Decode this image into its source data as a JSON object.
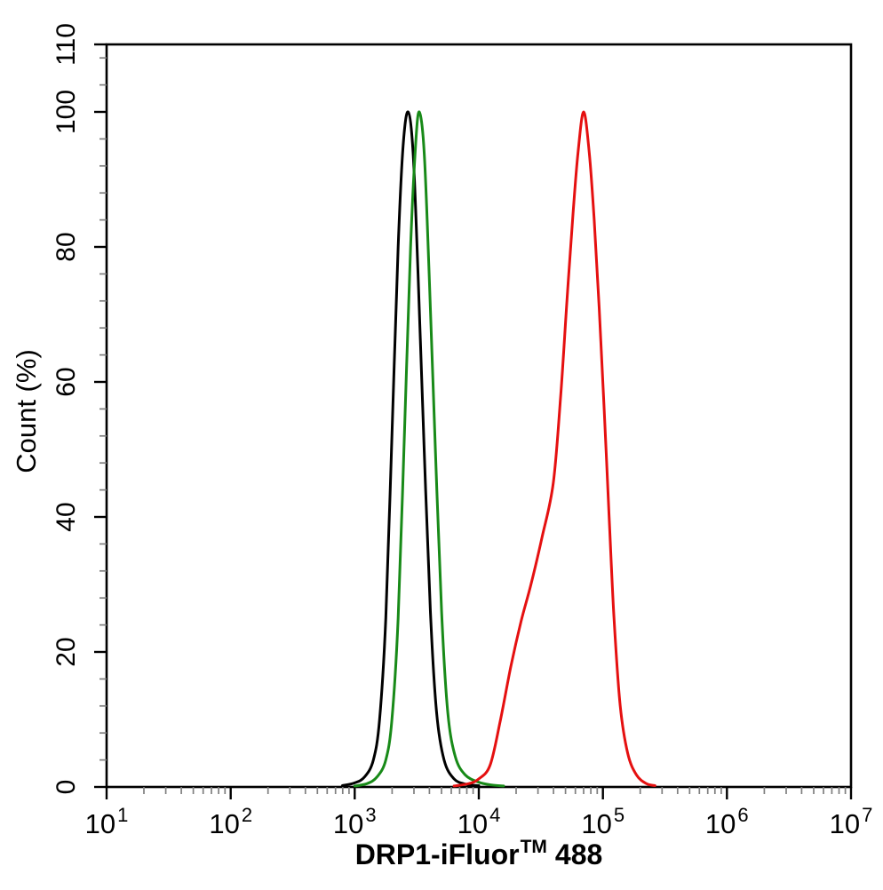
{
  "figure": {
    "ylabel": "Count (%)",
    "xlabel_main": "DRP1-iFluor",
    "xlabel_sup": "TM",
    "xlabel_suffix": "488",
    "background_color": "#ffffff",
    "axis_color": "#000000",
    "minor_tick_color": "#7f7f7f"
  },
  "chart_data": {
    "type": "line",
    "subtype": "flow-cytometry-histogram",
    "title": "",
    "xlabel": "DRP1-iFluor TM 488",
    "ylabel": "Count (%)",
    "x_scale": "log10",
    "x_range_log10": [
      1,
      7
    ],
    "ylim": [
      0,
      110
    ],
    "grid": false,
    "legend": "none",
    "x_ticks": [
      {
        "base": "10",
        "exp": "1",
        "value": 1
      },
      {
        "base": "10",
        "exp": "2",
        "value": 2
      },
      {
        "base": "10",
        "exp": "3",
        "value": 3
      },
      {
        "base": "10",
        "exp": "4",
        "value": 4
      },
      {
        "base": "10",
        "exp": "5",
        "value": 5
      },
      {
        "base": "10",
        "exp": "6",
        "value": 6
      },
      {
        "base": "10",
        "exp": "7",
        "value": 7
      }
    ],
    "y_ticks": [
      {
        "value": 0,
        "label": "0"
      },
      {
        "value": 20,
        "label": "20"
      },
      {
        "value": 40,
        "label": "40"
      },
      {
        "value": 60,
        "label": "60"
      },
      {
        "value": 80,
        "label": "80"
      },
      {
        "value": 100,
        "label": "100"
      },
      {
        "value": 110,
        "label": "110"
      }
    ],
    "y_minor_step": 4,
    "series": [
      {
        "name": "black-curve",
        "color": "#000000",
        "peak_log10x": 3.43,
        "peak_percent": 100,
        "points": [
          [
            2.9,
            0.2
          ],
          [
            3.0,
            0.6
          ],
          [
            3.08,
            1.5
          ],
          [
            3.15,
            4
          ],
          [
            3.2,
            10
          ],
          [
            3.25,
            25
          ],
          [
            3.3,
            52
          ],
          [
            3.35,
            80
          ],
          [
            3.39,
            95
          ],
          [
            3.43,
            100
          ],
          [
            3.47,
            94
          ],
          [
            3.51,
            76
          ],
          [
            3.56,
            50
          ],
          [
            3.61,
            26
          ],
          [
            3.66,
            11
          ],
          [
            3.72,
            4
          ],
          [
            3.8,
            1.2
          ],
          [
            3.9,
            0.4
          ],
          [
            4.0,
            0.2
          ]
        ]
      },
      {
        "name": "green-curve",
        "color": "#188a18",
        "peak_log10x": 3.52,
        "peak_percent": 100,
        "points": [
          [
            3.0,
            0.15
          ],
          [
            3.1,
            0.5
          ],
          [
            3.18,
            1.5
          ],
          [
            3.25,
            4
          ],
          [
            3.3,
            10
          ],
          [
            3.35,
            25
          ],
          [
            3.4,
            52
          ],
          [
            3.45,
            80
          ],
          [
            3.49,
            95
          ],
          [
            3.52,
            100
          ],
          [
            3.56,
            94
          ],
          [
            3.6,
            76
          ],
          [
            3.65,
            50
          ],
          [
            3.7,
            26
          ],
          [
            3.75,
            11
          ],
          [
            3.81,
            4.5
          ],
          [
            3.89,
            1.8
          ],
          [
            4.0,
            0.7
          ],
          [
            4.1,
            0.3
          ],
          [
            4.2,
            0.15
          ]
        ]
      },
      {
        "name": "red-curve",
        "color": "#e51010",
        "peak_log10x": 4.845,
        "peak_percent": 100,
        "points": [
          [
            3.8,
            0.15
          ],
          [
            3.92,
            0.5
          ],
          [
            4.0,
            1.2
          ],
          [
            4.09,
            3.2
          ],
          [
            4.17,
            9.5
          ],
          [
            4.26,
            18
          ],
          [
            4.34,
            24.5
          ],
          [
            4.42,
            30
          ],
          [
            4.51,
            37
          ],
          [
            4.6,
            45
          ],
          [
            4.66,
            58
          ],
          [
            4.71,
            72
          ],
          [
            4.76,
            85
          ],
          [
            4.8,
            94
          ],
          [
            4.845,
            100
          ],
          [
            4.89,
            94
          ],
          [
            4.93,
            84
          ],
          [
            4.97,
            71
          ],
          [
            5.01,
            56
          ],
          [
            5.05,
            40
          ],
          [
            5.09,
            25
          ],
          [
            5.14,
            12
          ],
          [
            5.2,
            5
          ],
          [
            5.27,
            1.8
          ],
          [
            5.35,
            0.5
          ],
          [
            5.42,
            0.2
          ]
        ]
      }
    ]
  }
}
